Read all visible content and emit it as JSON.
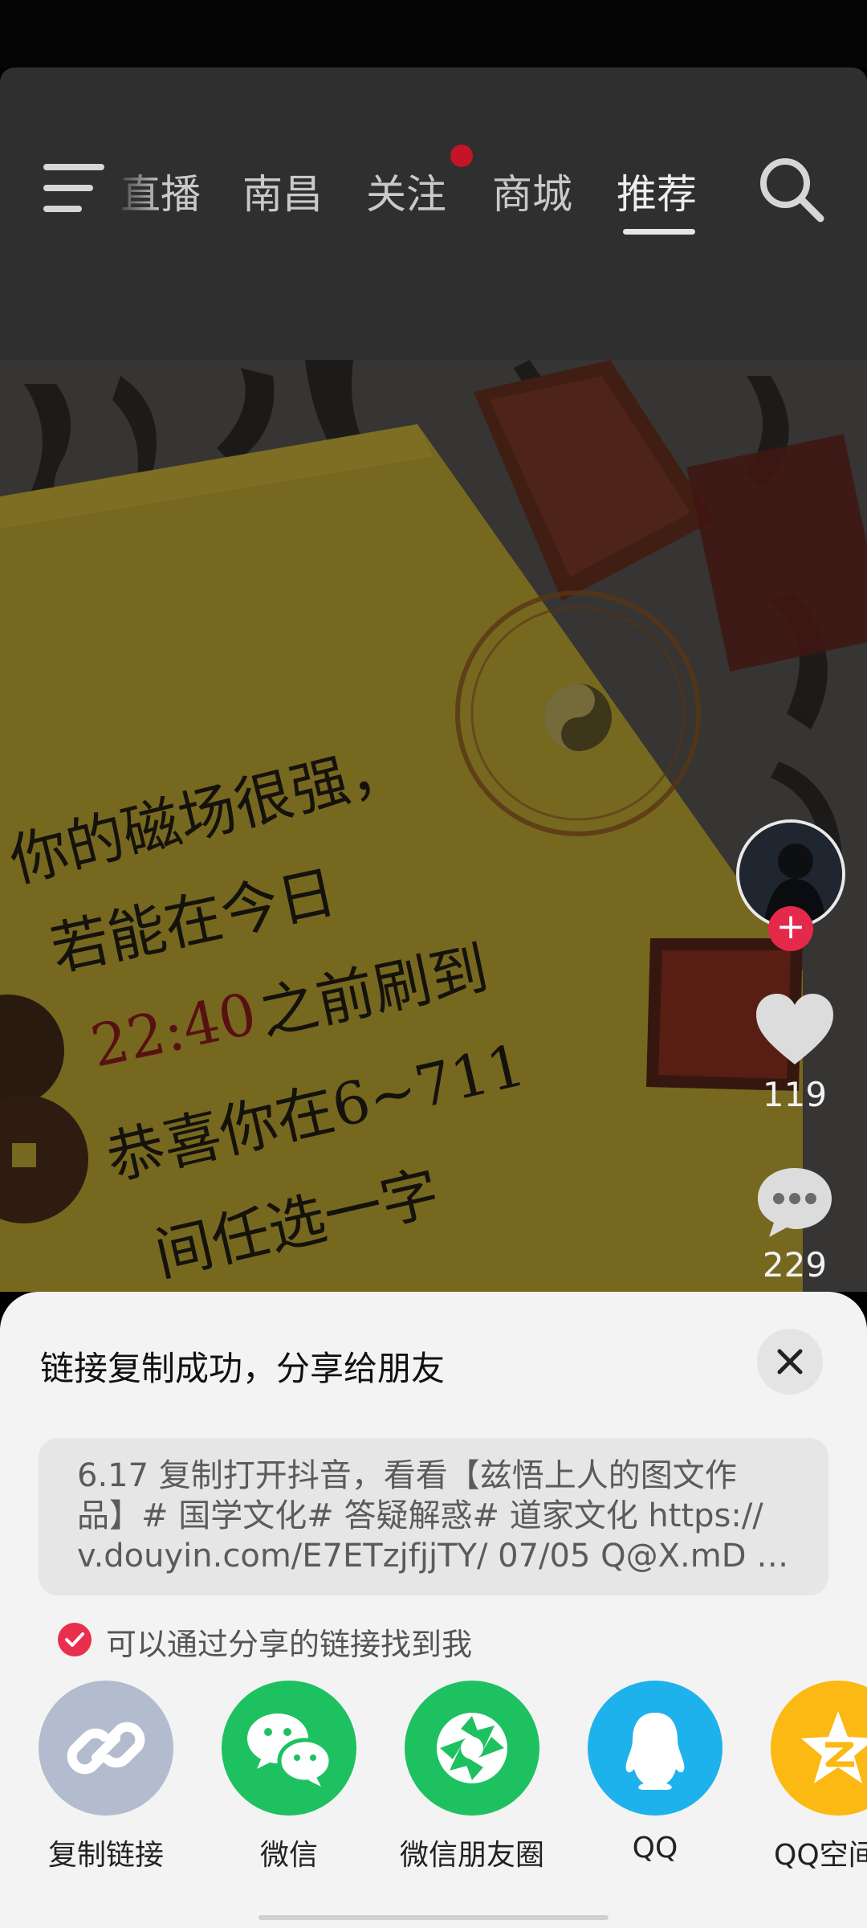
{
  "colors": {
    "accent_red": "#ea2e4e",
    "wechat_green": "#1ec160",
    "qq_blue": "#1eb2ec",
    "qzone_yellow": "#fcb813",
    "link_gray": "#b2bcce"
  },
  "top_nav": {
    "tabs": [
      {
        "label": "直播"
      },
      {
        "label": "南昌"
      },
      {
        "label": "关注"
      },
      {
        "label": "商城"
      },
      {
        "label": "推荐"
      }
    ],
    "active_tab": "推荐",
    "menu_icon": "hamburger-menu-icon",
    "search_icon": "search-icon"
  },
  "post": {
    "card_lines": [
      "你的磁场很强，",
      "若能在今日",
      "22:40",
      "之前刷到",
      "恭喜你在6~7",
      "11",
      "恭喜你在6~711",
      "间任选一字"
    ],
    "like_count": "119",
    "comment_count": "229"
  },
  "share_sheet": {
    "title": "链接复制成功，分享给朋友",
    "link_lines": [
      "6.17 复制打开抖音，看看【兹悟上人的图文作",
      "品】# 国学文化# 答疑解惑# 道家文化  https://",
      "v.douyin.com/E7ETzjfjjTY/ 07/05 Q@X.mD …"
    ],
    "findable_label": "可以通过分享的链接找到我",
    "findable_checked": true,
    "targets": [
      {
        "label": "复制链接",
        "icon": "link-icon"
      },
      {
        "label": "微信",
        "icon": "wechat-icon"
      },
      {
        "label": "微信朋友圈",
        "icon": "moments-icon"
      },
      {
        "label": "QQ",
        "icon": "qq-penguin-icon"
      },
      {
        "label": "QQ空间",
        "icon": "qzone-star-icon"
      }
    ]
  }
}
